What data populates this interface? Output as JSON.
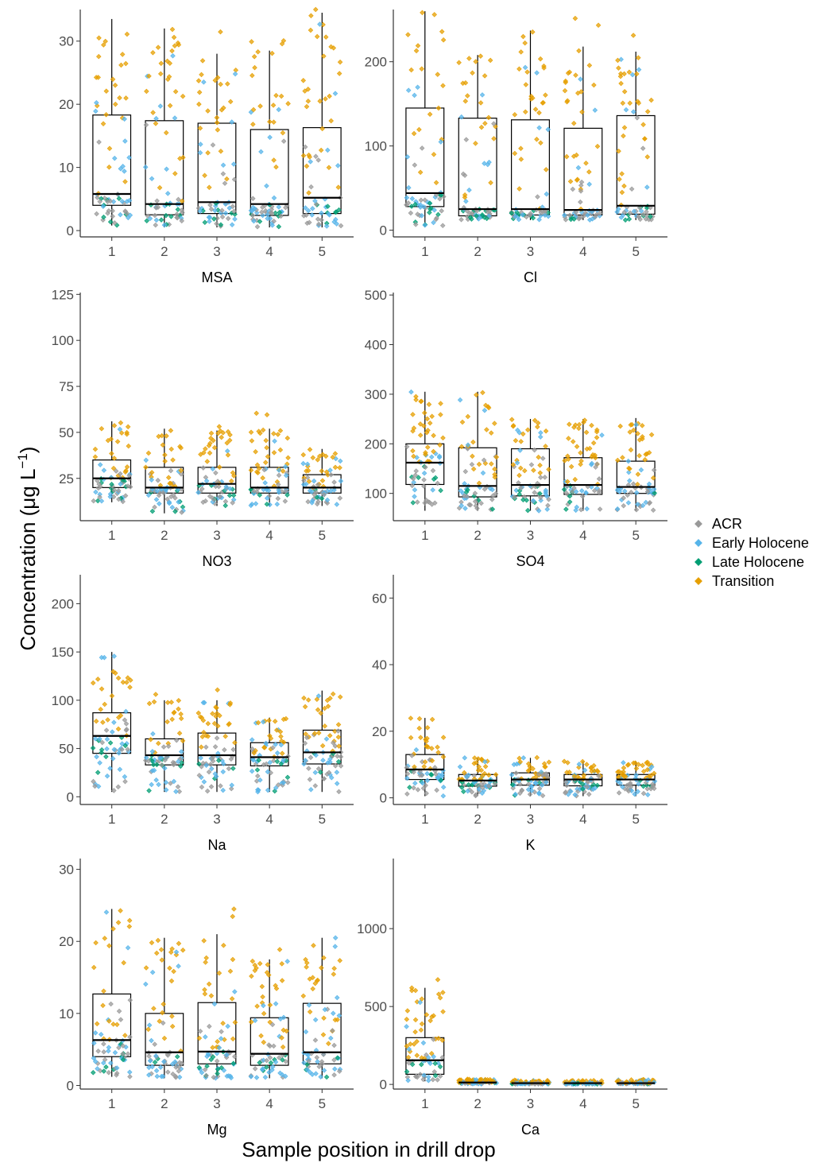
{
  "chart_data": {
    "type": "box",
    "xlabel": "Sample position in drill drop",
    "ylabel": "Concentration (μg L",
    "ylabel_superscript": "−1",
    "ylabel_close": ")",
    "categories": [
      "1",
      "2",
      "3",
      "4",
      "5"
    ],
    "legend": {
      "placement": "right",
      "entries": [
        {
          "name": "ACR",
          "color": "#999999"
        },
        {
          "name": "Early Holocene",
          "color": "#56B4E9"
        },
        {
          "name": "Late Holocene",
          "color": "#009E73"
        },
        {
          "name": "Transition",
          "color": "#E69F00"
        }
      ]
    },
    "panels": [
      {
        "name": "MSA",
        "ylim": [
          -1,
          35
        ],
        "yticks": [
          0,
          10,
          20,
          30
        ],
        "boxes": [
          {
            "q1": 4.0,
            "median": 5.8,
            "q3": 18.3,
            "lo": 0.8,
            "hi": 33.5
          },
          {
            "q1": 2.5,
            "median": 4.2,
            "q3": 17.4,
            "lo": 0.5,
            "hi": 32.0
          },
          {
            "q1": 2.7,
            "median": 4.5,
            "q3": 17.0,
            "lo": 0.5,
            "hi": 28.0
          },
          {
            "q1": 2.4,
            "median": 4.2,
            "q3": 16.0,
            "lo": 0.5,
            "hi": 28.5
          },
          {
            "q1": 2.7,
            "median": 5.2,
            "q3": 16.3,
            "lo": 0.5,
            "hi": 34.5
          }
        ],
        "points_per_box": 70
      },
      {
        "name": "Cl",
        "ylim": [
          -8,
          262
        ],
        "yticks": [
          0,
          100,
          200
        ],
        "boxes": [
          {
            "q1": 28,
            "median": 44,
            "q3": 145,
            "lo": 5,
            "hi": 260
          },
          {
            "q1": 17,
            "median": 25,
            "q3": 133,
            "lo": 12,
            "hi": 208
          },
          {
            "q1": 18,
            "median": 25,
            "q3": 131,
            "lo": 12,
            "hi": 237
          },
          {
            "q1": 18,
            "median": 24,
            "q3": 121,
            "lo": 12,
            "hi": 218
          },
          {
            "q1": 19,
            "median": 29,
            "q3": 136,
            "lo": 12,
            "hi": 212
          }
        ],
        "points_per_box": 70
      },
      {
        "name": "NO3",
        "ylim": [
          2,
          126
        ],
        "yticks": [
          25,
          50,
          75,
          100,
          125
        ],
        "boxes": [
          {
            "q1": 20,
            "median": 25,
            "q3": 35,
            "lo": 12,
            "hi": 56
          },
          {
            "q1": 17,
            "median": 20,
            "q3": 31,
            "lo": 6,
            "hi": 52
          },
          {
            "q1": 17,
            "median": 22,
            "q3": 31,
            "lo": 10,
            "hi": 51
          },
          {
            "q1": 17,
            "median": 20,
            "q3": 31,
            "lo": 10,
            "hi": 52
          },
          {
            "q1": 17,
            "median": 20,
            "q3": 27,
            "lo": 10,
            "hi": 41
          }
        ],
        "points_per_box": 70
      },
      {
        "name": "SO4",
        "ylim": [
          45,
          505
        ],
        "yticks": [
          100,
          200,
          300,
          400,
          500
        ],
        "boxes": [
          {
            "q1": 118,
            "median": 162,
            "q3": 200,
            "lo": 65,
            "hi": 305
          },
          {
            "q1": 93,
            "median": 115,
            "q3": 192,
            "lo": 65,
            "hi": 305
          },
          {
            "q1": 95,
            "median": 117,
            "q3": 190,
            "lo": 65,
            "hi": 250
          },
          {
            "q1": 98,
            "median": 117,
            "q3": 172,
            "lo": 65,
            "hi": 250
          },
          {
            "q1": 100,
            "median": 113,
            "q3": 165,
            "lo": 65,
            "hi": 252
          }
        ],
        "points_per_box": 70
      },
      {
        "name": "Na",
        "ylim": [
          -8,
          230
        ],
        "yticks": [
          0,
          50,
          100,
          150,
          200
        ],
        "boxes": [
          {
            "q1": 45,
            "median": 63,
            "q3": 87,
            "lo": 5,
            "hi": 150
          },
          {
            "q1": 33,
            "median": 43,
            "q3": 60,
            "lo": 5,
            "hi": 100
          },
          {
            "q1": 33,
            "median": 43,
            "q3": 66,
            "lo": 5,
            "hi": 100
          },
          {
            "q1": 32,
            "median": 41,
            "q3": 56,
            "lo": 5,
            "hi": 82
          },
          {
            "q1": 34,
            "median": 46,
            "q3": 69,
            "lo": 5,
            "hi": 110
          }
        ],
        "points_per_box": 70
      },
      {
        "name": "K",
        "ylim": [
          -2,
          67
        ],
        "yticks": [
          0,
          20,
          40,
          60
        ],
        "boxes": [
          {
            "q1": 5.5,
            "median": 8.5,
            "q3": 13,
            "lo": 0.5,
            "hi": 24
          },
          {
            "q1": 3.5,
            "median": 5.2,
            "q3": 7,
            "lo": 0.5,
            "hi": 12
          },
          {
            "q1": 3.8,
            "median": 5.5,
            "q3": 7.5,
            "lo": 0.5,
            "hi": 12
          },
          {
            "q1": 3.6,
            "median": 5.5,
            "q3": 7,
            "lo": 0.5,
            "hi": 11
          },
          {
            "q1": 3.8,
            "median": 5.5,
            "q3": 7,
            "lo": 0.5,
            "hi": 11
          }
        ],
        "points_per_box": 70
      },
      {
        "name": "Mg",
        "ylim": [
          -0.5,
          31.5
        ],
        "yticks": [
          0,
          10,
          20,
          30
        ],
        "boxes": [
          {
            "q1": 4.0,
            "median": 6.3,
            "q3": 12.7,
            "lo": 1.2,
            "hi": 24.5
          },
          {
            "q1": 2.8,
            "median": 4.6,
            "q3": 10.0,
            "lo": 1.0,
            "hi": 20.5
          },
          {
            "q1": 3.0,
            "median": 4.7,
            "q3": 11.5,
            "lo": 1.0,
            "hi": 21.0
          },
          {
            "q1": 2.8,
            "median": 4.4,
            "q3": 9.4,
            "lo": 1.0,
            "hi": 17.5
          },
          {
            "q1": 3.0,
            "median": 4.6,
            "q3": 11.4,
            "lo": 1.0,
            "hi": 20.5
          }
        ],
        "points_per_box": 70
      },
      {
        "name": "Ca",
        "ylim": [
          -30,
          1450
        ],
        "yticks": [
          0,
          500,
          1000
        ],
        "boxes": [
          {
            "q1": 65,
            "median": 155,
            "q3": 300,
            "lo": 20,
            "hi": 620
          },
          {
            "q1": 8,
            "median": 12,
            "q3": 20,
            "lo": 2,
            "hi": 35
          },
          {
            "q1": 5,
            "median": 8,
            "q3": 14,
            "lo": 2,
            "hi": 25
          },
          {
            "q1": 5,
            "median": 8,
            "q3": 14,
            "lo": 2,
            "hi": 25
          },
          {
            "q1": 5,
            "median": 8,
            "q3": 16,
            "lo": 2,
            "hi": 30
          }
        ],
        "points_per_box": 70
      }
    ]
  }
}
